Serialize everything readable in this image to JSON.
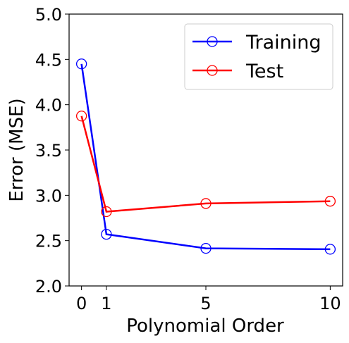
{
  "chart_data": {
    "type": "line",
    "x": [
      0,
      1,
      5,
      10
    ],
    "xticks": [
      "0",
      "1",
      "5",
      "10"
    ],
    "xlim": [
      -0.5,
      10.5
    ],
    "ylim": [
      2.0,
      5.0
    ],
    "yticks": [
      "2.0",
      "2.5",
      "3.0",
      "3.5",
      "4.0",
      "4.5",
      "5.0"
    ],
    "xlabel": "Polynomial Order",
    "ylabel": "Error (MSE)",
    "grid": false,
    "legend_position": "top-right",
    "series": [
      {
        "name": "Training",
        "color": "#0000ff",
        "marker": "open-circle",
        "values": [
          4.45,
          2.57,
          2.415,
          2.405
        ]
      },
      {
        "name": "Test",
        "color": "#ff0000",
        "marker": "open-circle",
        "values": [
          3.875,
          2.82,
          2.91,
          2.935
        ]
      }
    ]
  }
}
